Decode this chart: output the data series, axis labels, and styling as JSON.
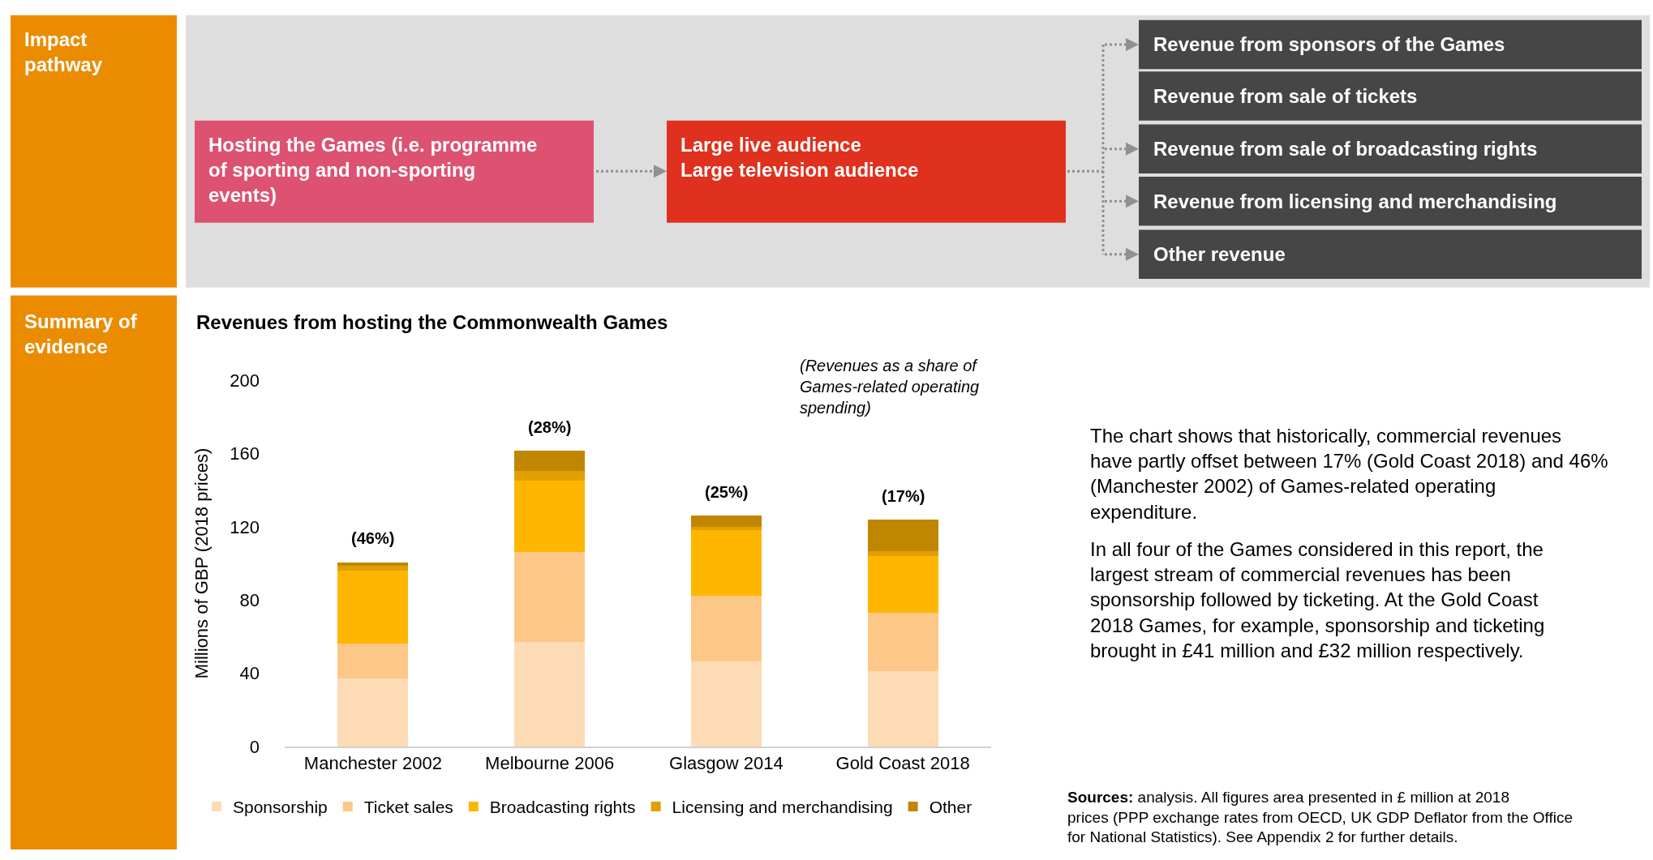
{
  "chart_data": [
    {
      "type": "other",
      "title": "Impact pathway",
      "annotations": [
        "Hosting the Games (i.e. programme of sporting and non-sporting events)",
        "Large live audience\nLarge television audience",
        "Revenue from sponsors of the Games",
        "Revenue from sale of tickets",
        "Revenue from sale of broadcasting rights",
        "Revenue from licensing and merchandising",
        "Other revenue"
      ]
    },
    {
      "type": "bar",
      "title": "Revenues from hosting the Commonwealth Games",
      "ylabel": "Millions of GBP (2018 prices)",
      "categories": [
        "Manchester 2002",
        "Melbourne 2006",
        "Glasgow 2014",
        "Gold Coast 2018"
      ],
      "stacked": true,
      "ylim": [
        0,
        200
      ],
      "yticks": [
        0,
        40,
        80,
        120,
        160,
        200
      ],
      "legend": "bottom",
      "series": [
        {
          "name": "Sponsorship",
          "color": "#fddcb5",
          "values": [
            37,
            57,
            46.5,
            41
          ]
        },
        {
          "name": "Ticket sales",
          "color": "#fdc887",
          "values": [
            19,
            49,
            36,
            32
          ]
        },
        {
          "name": "Broadcasting rights",
          "color": "#ffb600",
          "values": [
            40,
            39,
            35.5,
            31
          ]
        },
        {
          "name": "Licensing and merchandising",
          "color": "#e0a000",
          "values": [
            2.5,
            5.5,
            2,
            2.5
          ]
        },
        {
          "name": "Other",
          "color": "#c08600",
          "values": [
            2,
            11,
            6,
            17.5
          ]
        }
      ],
      "annotations": [
        {
          "text": "(46%)",
          "x": "Manchester 2002",
          "y": 101
        },
        {
          "text": "(28%)",
          "x": "Melbourne 2006",
          "y": 161.5
        },
        {
          "text": "(25%)",
          "x": "Glasgow 2014",
          "y": 126
        },
        {
          "text": "(17%)",
          "x": "Gold Coast 2018",
          "y": 124
        },
        "(Revenues as a share of Games-related operating spending)"
      ]
    },
    {
      "type": "other",
      "title": "Summary of evidence",
      "annotations": [
        "The chart shows that historically, commercial revenues have partly offset between 17% (Gold Coast 2018) and 46% (Manchester 2002) of Games-related operating expenditure.",
        "In all four of the Games considered in this report, the largest stream of commercial revenues has been sponsorship followed by ticketing. At the Gold Coast 2018 Games, for example, sponsorship and ticketing brought in £41 million and £32 million respectively.",
        "Sources: analysis. All figures area presented in £ million at 2018 prices (PPP exchange rates from OECD, UK GDP Deflator from the Office for National Statistics). See Appendix 2 for further details."
      ]
    }
  ]
}
